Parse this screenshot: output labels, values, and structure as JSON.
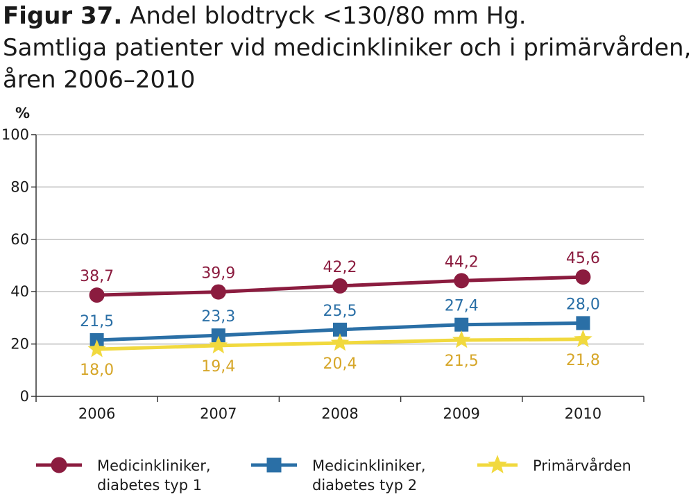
{
  "figure": {
    "title_prefix": "Figur 37.",
    "title_rest": "Andel blodtryck <130/80 mm Hg.",
    "subtitle_line1": "Samtliga patienter vid medicinkliniker och i primärvården,",
    "subtitle_line2": "åren 2006–2010"
  },
  "chart_data": {
    "type": "line",
    "title": "Figur 37. Andel blodtryck <130/80 mm Hg.",
    "subtitle": "Samtliga patienter vid medicinkliniker och i primärvården, åren 2006–2010",
    "ylabel": "%",
    "xlabel": "",
    "ylim": [
      0,
      100
    ],
    "yticks": [
      0,
      20,
      40,
      60,
      80,
      100
    ],
    "categories": [
      "2006",
      "2007",
      "2008",
      "2009",
      "2010"
    ],
    "grid": "horizontal",
    "legend_position": "bottom",
    "series": [
      {
        "name_line1": "Medicinkliniker,",
        "name_line2": "diabetes typ 1",
        "marker": "circle",
        "color": "#8b1c3f",
        "label_color": "#8b1c3f",
        "values": [
          38.7,
          39.9,
          42.2,
          44.2,
          45.6
        ],
        "labels": [
          "38,7",
          "39,9",
          "42,2",
          "44,2",
          "45,6"
        ],
        "label_side": "above"
      },
      {
        "name_line1": "Medicinkliniker,",
        "name_line2": "diabetes typ 2",
        "marker": "square",
        "color": "#2a6fa6",
        "label_color": "#2a6fa6",
        "values": [
          21.5,
          23.3,
          25.5,
          27.4,
          28.0
        ],
        "labels": [
          "21,5",
          "23,3",
          "25,5",
          "27,4",
          "28,0"
        ],
        "label_side": "above"
      },
      {
        "name_line1": "Primärvården",
        "name_line2": "",
        "marker": "star",
        "color": "#f1d93e",
        "label_color": "#d6a628",
        "values": [
          18.0,
          19.4,
          20.4,
          21.5,
          21.8
        ],
        "labels": [
          "18,0",
          "19,4",
          "20,4",
          "21,5",
          "21,8"
        ],
        "label_side": "below"
      }
    ]
  }
}
